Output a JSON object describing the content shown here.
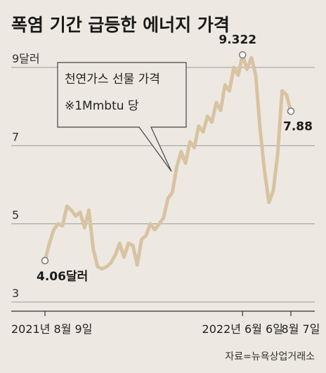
{
  "title": "폭염 기간 급등한 에너지 가격",
  "source": "자료=뉴욕상업거래소",
  "chart_data": {
    "type": "line",
    "title": "폭염 기간 급등한 에너지 가격",
    "series": [
      {
        "name": "천연가스 선물 가격",
        "unit_note": "※1Mmbtu 당",
        "color": "#d8c3a2",
        "values": [
          4.06,
          4.5,
          4.85,
          5.0,
          4.95,
          5.45,
          5.35,
          5.2,
          5.3,
          4.9,
          5.35,
          4.35,
          3.9,
          3.85,
          3.9,
          4.0,
          4.2,
          4.5,
          4.15,
          4.5,
          4.45,
          3.95,
          4.6,
          4.7,
          5.0,
          4.85,
          5.0,
          5.15,
          5.65,
          5.8,
          6.45,
          6.85,
          6.55,
          7.1,
          6.95,
          7.5,
          7.35,
          7.75,
          7.6,
          8.1,
          7.9,
          8.55,
          8.4,
          9.0,
          8.8,
          9.322,
          8.95,
          9.25,
          8.8,
          7.4,
          6.35,
          5.55,
          5.85,
          6.8,
          8.4,
          8.3,
          7.88
        ]
      }
    ],
    "x_tick_labels": [
      "2021년 8월 9일",
      "2022년 6월 6일",
      "8월 7일"
    ],
    "x_tick_index": [
      0,
      45,
      56
    ],
    "y_ticks": [
      {
        "value": 9,
        "label": "9달러"
      },
      {
        "value": 7,
        "label": "7"
      },
      {
        "value": 5,
        "label": "5"
      },
      {
        "value": 3,
        "label": "3"
      }
    ],
    "ylim": [
      3,
      9.6
    ],
    "annotations": [
      {
        "index": 0,
        "label": "4.06달러"
      },
      {
        "index": 45,
        "label": "9.322"
      },
      {
        "index": 56,
        "label": "7.88"
      }
    ]
  }
}
